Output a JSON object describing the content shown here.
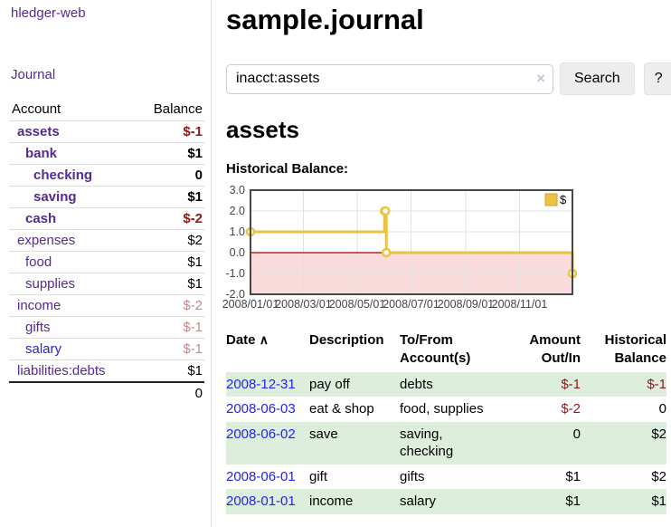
{
  "app": {
    "brand": "hledger-web"
  },
  "sidebar": {
    "journal_link": "Journal",
    "accounts_table": {
      "headers": {
        "account": "Account",
        "balance": "Balance"
      },
      "rows": [
        {
          "name": "assets",
          "balance": "$-1",
          "depth": 0,
          "bold": true,
          "balance_color": "negative"
        },
        {
          "name": "bank",
          "balance": "$1",
          "depth": 1,
          "bold": true,
          "balance_color": "normal"
        },
        {
          "name": "checking",
          "balance": "0",
          "depth": 2,
          "bold": true,
          "balance_color": "normal"
        },
        {
          "name": "saving",
          "balance": "$1",
          "depth": 2,
          "bold": true,
          "balance_color": "normal"
        },
        {
          "name": "cash",
          "balance": "$-2",
          "depth": 1,
          "bold": true,
          "balance_color": "negative"
        },
        {
          "name": "expenses",
          "balance": "$2",
          "depth": 0,
          "bold": false,
          "balance_color": "normal"
        },
        {
          "name": "food",
          "balance": "$1",
          "depth": 1,
          "bold": false,
          "balance_color": "normal"
        },
        {
          "name": "supplies",
          "balance": "$1",
          "depth": 1,
          "bold": false,
          "balance_color": "normal"
        },
        {
          "name": "income",
          "balance": "$-2",
          "depth": 0,
          "bold": false,
          "balance_color": "negative-faded"
        },
        {
          "name": "gifts",
          "balance": "$-1",
          "depth": 1,
          "bold": false,
          "balance_color": "negative-faded"
        },
        {
          "name": "salary",
          "balance": "$-1",
          "depth": 1,
          "bold": false,
          "balance_color": "negative-faded",
          "link_color": "blue"
        },
        {
          "name": "liabilities:debts",
          "balance": "$1",
          "depth": 0,
          "bold": false,
          "balance_color": "normal"
        }
      ],
      "total": "0"
    }
  },
  "header": {
    "title": "sample.journal"
  },
  "search": {
    "value": "inacct:assets",
    "clear_icon": "×",
    "button_label": "Search",
    "help_label": "?"
  },
  "account_page": {
    "title": "assets",
    "chart_label": "Historical Balance:"
  },
  "chart_data": {
    "type": "line",
    "title": "Historical Balance",
    "step": true,
    "series": [
      {
        "name": "$",
        "color": "#EDC240",
        "points": [
          {
            "date": "2008-01-01",
            "value": 1
          },
          {
            "date": "2008-06-01",
            "value": 2
          },
          {
            "date": "2008-06-02",
            "value": 2
          },
          {
            "date": "2008-06-03",
            "value": 0
          },
          {
            "date": "2008-12-31",
            "value": -1
          }
        ]
      }
    ],
    "ylim": [
      -2.0,
      3.0
    ],
    "yticks": [
      3.0,
      2.0,
      1.0,
      0.0,
      -1.0,
      -2.0
    ],
    "xticks": [
      "2008/01/01",
      "2008/03/01",
      "2008/05/01",
      "2008/07/01",
      "2008/09/01",
      "2008/11/01"
    ],
    "xrange": [
      "2008-01-01",
      "2008-12-31"
    ],
    "grid": true,
    "legend": [
      "$"
    ],
    "legend_position": "top-right",
    "negative_region_color": "#F9DBDB",
    "zero_line_color": "#A00000",
    "grid_color": "#E0E0E0",
    "border_color": "#474747",
    "tick_color": "#444444"
  },
  "register_table": {
    "headers": {
      "date": "Date",
      "sort_icon": "∧",
      "description": "Description",
      "accounts": "To/From Account(s)",
      "amount": "Amount Out/In",
      "balance": "Historical Balance"
    },
    "rows": [
      {
        "date": "2008-12-31",
        "description": "pay off",
        "accounts": "debts",
        "amount": {
          "text": "$-1",
          "negative": true
        },
        "balance": {
          "text": "$-1",
          "negative": true
        },
        "shaded": true
      },
      {
        "date": "2008-06-03",
        "description": "eat & shop",
        "accounts": "food, supplies",
        "amount": {
          "text": "$-2",
          "negative": true
        },
        "balance": {
          "text": "0",
          "negative": false
        },
        "shaded": false
      },
      {
        "date": "2008-06-02",
        "description": "save",
        "accounts": "saving, checking",
        "amount": {
          "text": "0",
          "negative": false
        },
        "balance": {
          "text": "$2",
          "negative": false
        },
        "shaded": true
      },
      {
        "date": "2008-06-01",
        "description": "gift",
        "accounts": "gifts",
        "amount": {
          "text": "$1",
          "negative": false
        },
        "balance": {
          "text": "$2",
          "negative": false
        },
        "shaded": false
      },
      {
        "date": "2008-01-01",
        "description": "income",
        "accounts": "salary",
        "amount": {
          "text": "$1",
          "negative": false
        },
        "balance": {
          "text": "$1",
          "negative": false
        },
        "shaded": true
      }
    ]
  },
  "colors": {
    "link_purple": "#552A90",
    "link_blue": "#2323EB",
    "negative_red": "#8B1A1A",
    "negative_faded": "#C48888",
    "row_green": "#DDEEDD",
    "series_gold": "#EDC240"
  }
}
